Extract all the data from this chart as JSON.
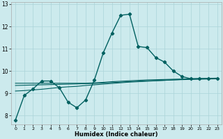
{
  "xlabel": "Humidex (Indice chaleur)",
  "ylabel": "",
  "bg_color": "#cceaed",
  "line_color": "#006060",
  "grid_color": "#aad4d8",
  "x_ticks": [
    0,
    1,
    2,
    3,
    4,
    5,
    6,
    7,
    8,
    9,
    10,
    11,
    12,
    13,
    14,
    15,
    16,
    17,
    18,
    19,
    20,
    21,
    22,
    23
  ],
  "y_ticks": [
    8,
    9,
    10,
    11,
    12,
    13
  ],
  "ylim": [
    7.6,
    13.1
  ],
  "xlim": [
    -0.5,
    23.5
  ],
  "series": {
    "line1": {
      "x": [
        0,
        1,
        2,
        3,
        4,
        5,
        6,
        7,
        8,
        9,
        10,
        11,
        12,
        13,
        14,
        15,
        16,
        17,
        18,
        19,
        20,
        21,
        22,
        23
      ],
      "y": [
        7.8,
        8.9,
        9.2,
        9.55,
        9.55,
        9.25,
        8.6,
        8.35,
        8.7,
        9.6,
        10.8,
        11.7,
        12.5,
        12.55,
        11.1,
        11.05,
        10.6,
        10.4,
        10.0,
        9.75,
        9.65,
        9.65,
        9.65,
        9.65
      ],
      "marker": "D",
      "markersize": 2.2,
      "linewidth": 1.0
    },
    "line2": {
      "x": [
        0,
        1,
        2,
        3,
        4,
        5,
        6,
        7,
        8,
        9,
        10,
        11,
        12,
        13,
        14,
        15,
        16,
        17,
        18,
        19,
        20,
        21,
        22,
        23
      ],
      "y": [
        9.45,
        9.45,
        9.45,
        9.45,
        9.45,
        9.45,
        9.45,
        9.45,
        9.45,
        9.47,
        9.49,
        9.52,
        9.54,
        9.56,
        9.58,
        9.6,
        9.61,
        9.62,
        9.63,
        9.64,
        9.65,
        9.66,
        9.67,
        9.68
      ],
      "linewidth": 0.8
    },
    "line3": {
      "x": [
        0,
        1,
        2,
        3,
        4,
        5,
        6,
        7,
        8,
        9,
        10,
        11,
        12,
        13,
        14,
        15,
        16,
        17,
        18,
        19,
        20,
        21,
        22,
        23
      ],
      "y": [
        9.35,
        9.36,
        9.37,
        9.38,
        9.39,
        9.4,
        9.41,
        9.42,
        9.43,
        9.44,
        9.46,
        9.48,
        9.5,
        9.52,
        9.54,
        9.56,
        9.57,
        9.58,
        9.6,
        9.61,
        9.62,
        9.63,
        9.64,
        9.65
      ],
      "linewidth": 0.8
    },
    "line4": {
      "x": [
        0,
        1,
        2,
        3,
        4,
        5,
        6,
        7,
        8,
        9,
        10,
        11,
        12,
        13,
        14,
        15,
        16,
        17,
        18,
        19,
        20,
        21,
        22,
        23
      ],
      "y": [
        9.1,
        9.12,
        9.15,
        9.18,
        9.22,
        9.26,
        9.29,
        9.31,
        9.35,
        9.38,
        9.41,
        9.44,
        9.47,
        9.5,
        9.52,
        9.54,
        9.56,
        9.58,
        9.6,
        9.62,
        9.64,
        9.65,
        9.66,
        9.67
      ],
      "linewidth": 0.8
    }
  }
}
